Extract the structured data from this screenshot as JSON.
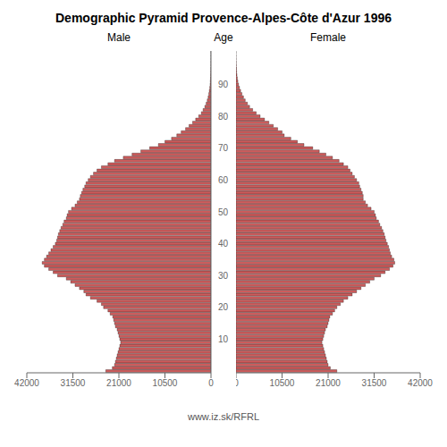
{
  "chart_data": {
    "type": "bar",
    "orientation": "horizontal",
    "title": "Demographic Pyramid Provence-Alpes-Côte d'Azur 1996",
    "ylabel": "Age",
    "annotations": [
      "www.iz.sk/RFRL"
    ],
    "grid": false,
    "xlim": [
      0,
      42000
    ],
    "xticks": [
      0,
      10500,
      21000,
      31500,
      42000
    ],
    "categories": [
      null,
      null,
      null,
      null,
      null,
      null,
      null,
      null,
      null,
      null,
      "10",
      null,
      null,
      null,
      null,
      null,
      null,
      null,
      null,
      null,
      "20",
      null,
      null,
      null,
      null,
      null,
      null,
      null,
      null,
      null,
      "30",
      null,
      null,
      null,
      null,
      null,
      null,
      null,
      null,
      null,
      "40",
      null,
      null,
      null,
      null,
      null,
      null,
      null,
      null,
      null,
      "50",
      null,
      null,
      null,
      null,
      null,
      null,
      null,
      null,
      null,
      "60",
      null,
      null,
      null,
      null,
      null,
      null,
      null,
      null,
      null,
      "70",
      null,
      null,
      null,
      null,
      null,
      null,
      null,
      null,
      null,
      "80",
      null,
      null,
      null,
      null,
      null,
      null,
      null,
      null,
      null,
      "90",
      null,
      null,
      null,
      null,
      null,
      null,
      null,
      null,
      null,
      null
    ],
    "series": [
      {
        "name": "Male",
        "color": "#cd5c5c",
        "values": [
          24000,
          22500,
          22000,
          21800,
          21600,
          21400,
          21200,
          21000,
          20800,
          20600,
          20800,
          21000,
          21200,
          21400,
          21800,
          22000,
          22200,
          22400,
          23000,
          23500,
          24500,
          25000,
          26000,
          27500,
          28500,
          29000,
          30000,
          31000,
          32000,
          33000,
          35000,
          36000,
          37000,
          38000,
          38500,
          38000,
          37500,
          37000,
          36500,
          36000,
          35500,
          35200,
          35000,
          34800,
          34500,
          34200,
          33800,
          33500,
          33000,
          32800,
          32500,
          31800,
          31000,
          30500,
          30000,
          29800,
          29500,
          29200,
          28800,
          28500,
          28000,
          27500,
          26800,
          26000,
          25000,
          23500,
          22000,
          20000,
          18000,
          16000,
          14000,
          12000,
          10500,
          9000,
          7800,
          6800,
          5800,
          5000,
          4200,
          3500,
          2800,
          2200,
          1800,
          1400,
          1100,
          850,
          650,
          500,
          380,
          280,
          200,
          150,
          100,
          70,
          50,
          30,
          20,
          10,
          5,
          3,
          1
        ]
      },
      {
        "name": "Female",
        "color": "#cd5c5c",
        "values": [
          23000,
          21500,
          21000,
          20800,
          20600,
          20400,
          20200,
          20000,
          19800,
          19600,
          19800,
          20000,
          20200,
          20400,
          20800,
          21000,
          21200,
          21400,
          22000,
          22500,
          23000,
          23800,
          24500,
          25500,
          26500,
          27500,
          28500,
          29500,
          30500,
          31500,
          33000,
          34000,
          35000,
          35800,
          36200,
          36000,
          35500,
          35200,
          35000,
          34800,
          34500,
          34200,
          34000,
          33800,
          33500,
          33200,
          32800,
          32500,
          32000,
          31800,
          31500,
          30800,
          30000,
          29500,
          29000,
          29000,
          28800,
          28500,
          28200,
          28000,
          27500,
          27000,
          26500,
          26000,
          25500,
          24500,
          23500,
          22000,
          20500,
          19000,
          17500,
          15500,
          14000,
          12500,
          11000,
          10500,
          9500,
          8500,
          7500,
          6500,
          5500,
          4600,
          3800,
          3100,
          2600,
          2100,
          1700,
          1350,
          1050,
          800,
          580,
          420,
          300,
          210,
          140,
          90,
          55,
          30,
          15,
          8,
          3
        ]
      }
    ]
  }
}
